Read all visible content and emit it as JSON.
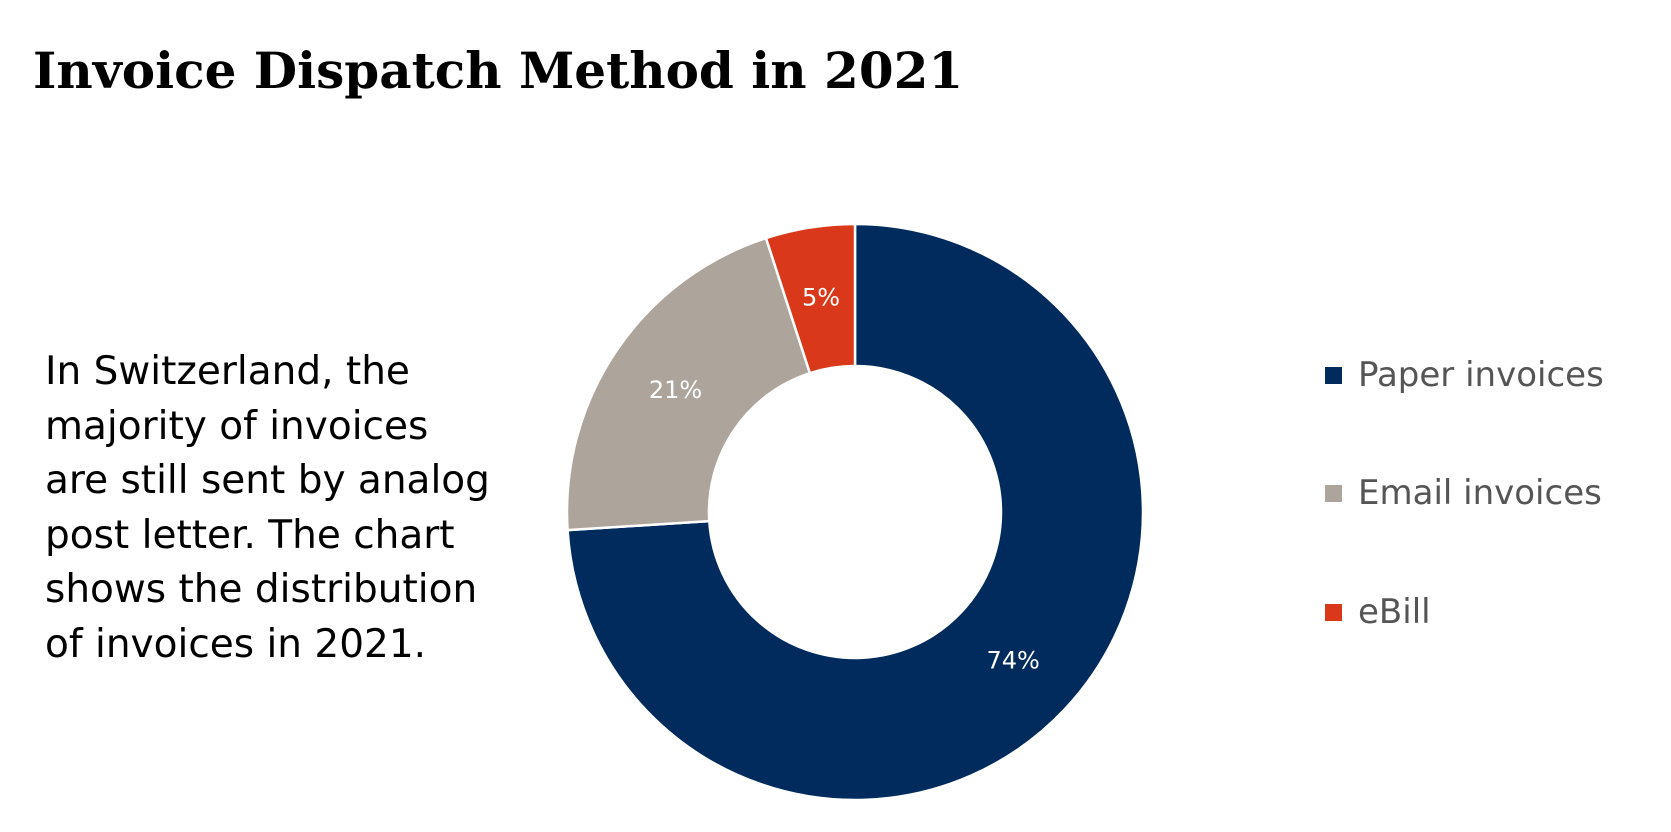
{
  "header": {
    "title": "Invoice Dispatch Method in 2021"
  },
  "description": {
    "lines": [
      "In Switzerland, the",
      "majority of invoices",
      "are still sent by analog",
      "post letter. The chart",
      "shows the distribution",
      "of invoices in 2021."
    ]
  },
  "chart_data": {
    "type": "pie",
    "style": "donut",
    "title": "Invoice Dispatch Method in 2021",
    "legend_position": "right",
    "categories": [
      "Paper invoices",
      "Email invoices",
      "eBill"
    ],
    "values": [
      74,
      21,
      5
    ],
    "labels": [
      "74%",
      "21%",
      "5%"
    ],
    "colors": [
      "#002b5c",
      "#ada59c",
      "#d9391a"
    ],
    "start_angle": "12 o'clock",
    "direction": "clockwise",
    "label_color": "#ffffff"
  },
  "legend": {
    "items": [
      {
        "label": "Paper invoices",
        "color": "#002b5c"
      },
      {
        "label": "Email invoices",
        "color": "#ada59c"
      },
      {
        "label": "eBill",
        "color": "#d9391a"
      }
    ]
  }
}
